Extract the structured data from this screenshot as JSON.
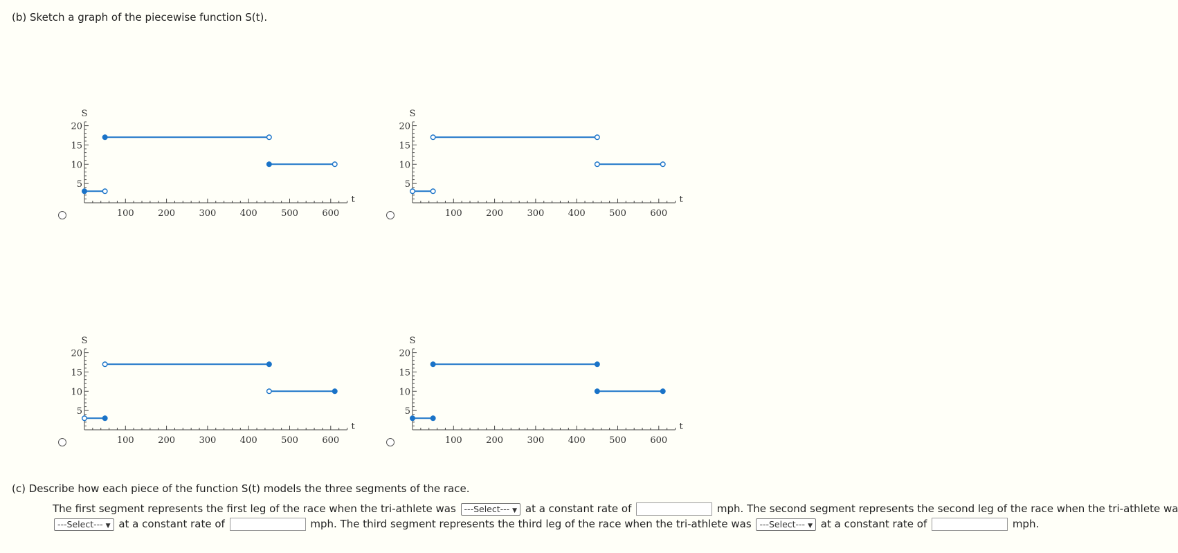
{
  "part_b": {
    "label": "(b) Sketch a graph of the piecewise function S(t)."
  },
  "part_c": {
    "label": "(c) Describe how each piece of the function S(t) models the three segments of the race."
  },
  "axis": {
    "x_label": "t",
    "y_label": "S",
    "x_ticks": [
      "100",
      "200",
      "300",
      "400",
      "500",
      "600"
    ],
    "y_ticks": [
      "5",
      "10",
      "15",
      "20"
    ]
  },
  "accent_color": "#1a73c8",
  "chart_data": [
    {
      "type": "line",
      "option": "A",
      "xlim": [
        0,
        640
      ],
      "ylim": [
        0,
        21
      ],
      "segments": [
        {
          "x": [
            0,
            50
          ],
          "y": [
            3,
            3
          ],
          "left": "closed",
          "right": "open"
        },
        {
          "x": [
            50,
            450
          ],
          "y": [
            17,
            17
          ],
          "left": "closed",
          "right": "open"
        },
        {
          "x": [
            450,
            610
          ],
          "y": [
            10,
            10
          ],
          "left": "closed",
          "right": "open"
        }
      ]
    },
    {
      "type": "line",
      "option": "B",
      "xlim": [
        0,
        640
      ],
      "ylim": [
        0,
        21
      ],
      "segments": [
        {
          "x": [
            0,
            50
          ],
          "y": [
            3,
            3
          ],
          "left": "open",
          "right": "open"
        },
        {
          "x": [
            50,
            450
          ],
          "y": [
            17,
            17
          ],
          "left": "open",
          "right": "open"
        },
        {
          "x": [
            450,
            610
          ],
          "y": [
            10,
            10
          ],
          "left": "open",
          "right": "open"
        }
      ]
    },
    {
      "type": "line",
      "option": "C",
      "xlim": [
        0,
        640
      ],
      "ylim": [
        0,
        21
      ],
      "segments": [
        {
          "x": [
            0,
            50
          ],
          "y": [
            3,
            3
          ],
          "left": "open",
          "right": "closed"
        },
        {
          "x": [
            50,
            450
          ],
          "y": [
            17,
            17
          ],
          "left": "open",
          "right": "closed"
        },
        {
          "x": [
            450,
            610
          ],
          "y": [
            10,
            10
          ],
          "left": "open",
          "right": "closed"
        }
      ]
    },
    {
      "type": "line",
      "option": "D",
      "xlim": [
        0,
        640
      ],
      "ylim": [
        0,
        21
      ],
      "segments": [
        {
          "x": [
            0,
            50
          ],
          "y": [
            3,
            3
          ],
          "left": "closed",
          "right": "closed"
        },
        {
          "x": [
            50,
            450
          ],
          "y": [
            17,
            17
          ],
          "left": "closed",
          "right": "closed"
        },
        {
          "x": [
            450,
            610
          ],
          "y": [
            10,
            10
          ],
          "left": "closed",
          "right": "closed"
        }
      ]
    }
  ],
  "sentence": {
    "s1a": "The first segment represents the first leg of the race when the tri-athlete was",
    "s1b": "at a constant rate of",
    "s1c": "mph. The second segment represents the second leg of the race when the tri-athlete was",
    "s2b": "at a constant rate of",
    "s2c": "mph. The third segment represents the third leg of the race when the tri-athlete was",
    "s3b": "at a constant rate of",
    "s3c": "mph."
  },
  "select_placeholder": "---Select---",
  "inputs": {
    "rate1": "",
    "rate2": "",
    "rate3": ""
  }
}
